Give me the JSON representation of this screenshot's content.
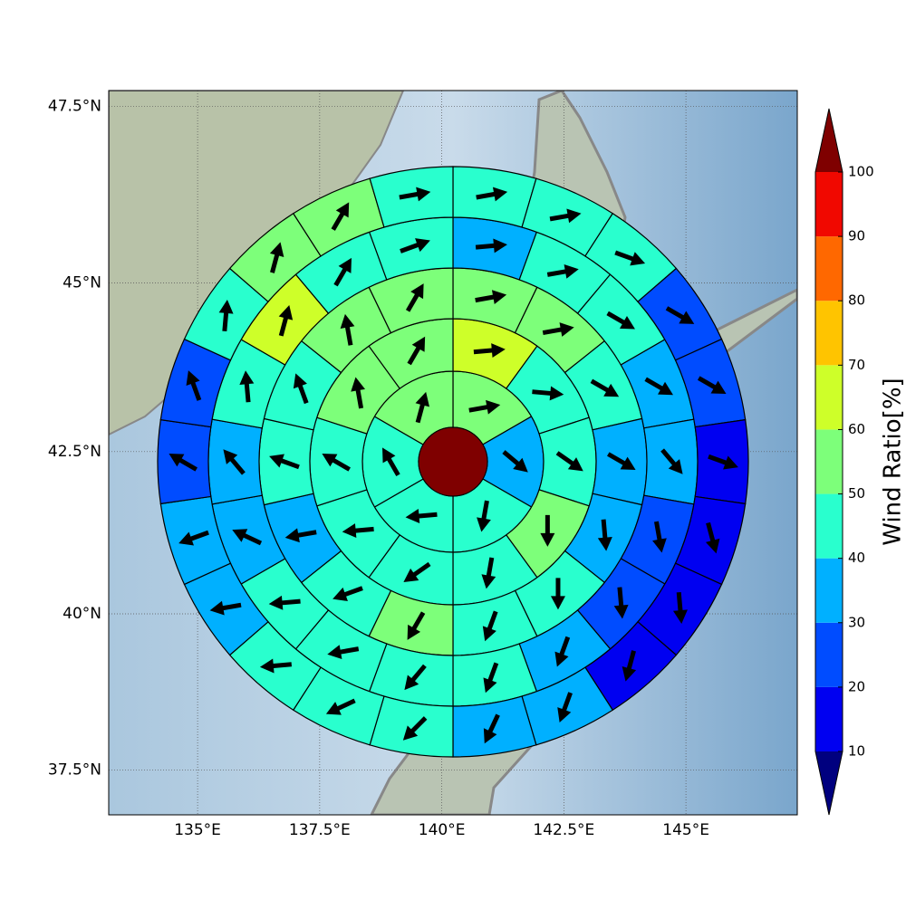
{
  "chart_data": {
    "type": "polar-grid",
    "xlim": [
      133.18,
      147.28
    ],
    "ylim": [
      36.77,
      47.72
    ],
    "xticks": [
      {
        "value": 135,
        "label": "135°E"
      },
      {
        "value": 137.5,
        "label": "137.5°E"
      },
      {
        "value": 140,
        "label": "140°E"
      },
      {
        "value": 142.5,
        "label": "142.5°E"
      },
      {
        "value": 145,
        "label": "145°E"
      }
    ],
    "yticks": [
      {
        "value": 37.5,
        "label": "37.5°N"
      },
      {
        "value": 40,
        "label": "40°N"
      },
      {
        "value": 42.5,
        "label": "42.5°N"
      },
      {
        "value": 45,
        "label": "45°N"
      },
      {
        "value": 47.5,
        "label": "47.5°N"
      }
    ],
    "grid": true,
    "center_color": "#7f0000",
    "rings": [
      {
        "values": [
          55,
          35,
          45,
          45,
          45,
          55
        ],
        "directions": [
          80,
          130,
          190,
          265,
          330,
          15
        ]
      },
      {
        "values": [
          65,
          45,
          45,
          55,
          45,
          45,
          45,
          45,
          55,
          55
        ],
        "directions": [
          85,
          95,
          125,
          180,
          190,
          235,
          265,
          300,
          350,
          30
        ]
      },
      {
        "values": [
          55,
          55,
          45,
          35,
          35,
          45,
          45,
          55,
          45,
          35,
          45,
          45,
          55,
          55
        ],
        "directions": [
          80,
          80,
          120,
          120,
          175,
          180,
          200,
          210,
          250,
          260,
          290,
          340,
          350,
          30
        ]
      },
      {
        "values": [
          35,
          45,
          45,
          35,
          35,
          25,
          25,
          35,
          45,
          45,
          45,
          45,
          35,
          35,
          45,
          65,
          45,
          45
        ],
        "directions": [
          85,
          80,
          120,
          120,
          140,
          170,
          175,
          200,
          200,
          220,
          260,
          265,
          295,
          320,
          355,
          15,
          30,
          70
        ]
      },
      {
        "values": [
          45,
          45,
          45,
          25,
          25,
          15,
          15,
          15,
          15,
          35,
          35,
          45,
          45,
          45,
          35,
          35,
          25,
          25,
          45,
          55,
          55,
          45
        ],
        "directions": [
          80,
          80,
          110,
          120,
          120,
          110,
          165,
          175,
          195,
          200,
          205,
          225,
          245,
          265,
          260,
          250,
          300,
          340,
          5,
          15,
          30,
          80
        ]
      }
    ],
    "colorbar": {
      "label": "Wind Ratio[%]",
      "ticks": [
        10,
        20,
        30,
        40,
        50,
        60,
        70,
        80,
        90,
        100
      ],
      "colors": [
        "#0000f1",
        "#004cff",
        "#00b0ff",
        "#29ffce",
        "#7dff7a",
        "#ceff29",
        "#ffc400",
        "#ff6800",
        "#f10800"
      ],
      "under_color": "#00007f",
      "over_color": "#7f0000"
    }
  }
}
